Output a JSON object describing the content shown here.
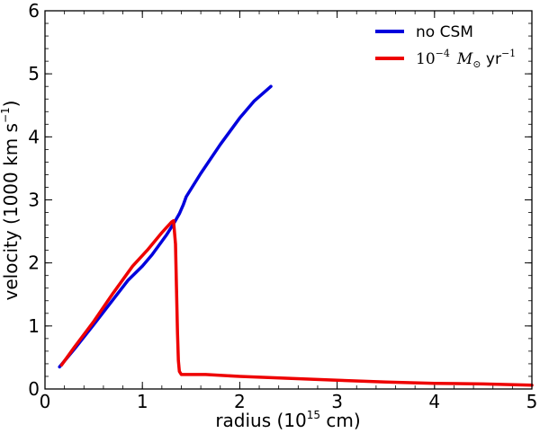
{
  "chart_data": {
    "type": "line",
    "xlabel": "radius (10",
    "xlabel_exp": "15",
    "xlabel_unit": " cm)",
    "ylabel": "velocity (1000 km s",
    "ylabel_exp": "−1",
    "ylabel_close": ")",
    "xlim": [
      0,
      5
    ],
    "ylim": [
      0,
      6
    ],
    "xticks": [
      "0",
      "1",
      "2",
      "3",
      "4",
      "5"
    ],
    "yticks": [
      "0",
      "1",
      "2",
      "3",
      "4",
      "5",
      "6"
    ],
    "legend_position": "top-right",
    "series": [
      {
        "name": "no CSM",
        "color": "#0000dd",
        "x": [
          0.15,
          0.3,
          0.5,
          0.7,
          0.85,
          1.0,
          1.1,
          1.25,
          1.32,
          1.38,
          1.42,
          1.45,
          1.6,
          1.8,
          2.0,
          2.15,
          2.32
        ],
        "y": [
          0.35,
          0.63,
          1.02,
          1.42,
          1.72,
          1.95,
          2.13,
          2.45,
          2.62,
          2.78,
          2.92,
          3.05,
          3.42,
          3.88,
          4.3,
          4.57,
          4.8
        ]
      },
      {
        "name_base": "10",
        "name_exp": "−4",
        "name_sym": "M",
        "name_sub": "⊙",
        "name_unit": " yr",
        "name_unit_exp": "−1",
        "color": "#ee0000",
        "x": [
          0.17,
          0.3,
          0.5,
          0.7,
          0.9,
          1.05,
          1.2,
          1.3,
          1.32,
          1.34,
          1.35,
          1.36,
          1.37,
          1.38,
          1.4,
          1.5,
          1.65,
          2.0,
          2.5,
          3.0,
          3.5,
          4.0,
          4.5,
          5.0
        ],
        "y": [
          0.38,
          0.66,
          1.07,
          1.52,
          1.95,
          2.2,
          2.48,
          2.65,
          2.67,
          2.3,
          1.6,
          0.9,
          0.45,
          0.28,
          0.23,
          0.23,
          0.23,
          0.2,
          0.17,
          0.14,
          0.11,
          0.09,
          0.08,
          0.06
        ]
      }
    ]
  }
}
